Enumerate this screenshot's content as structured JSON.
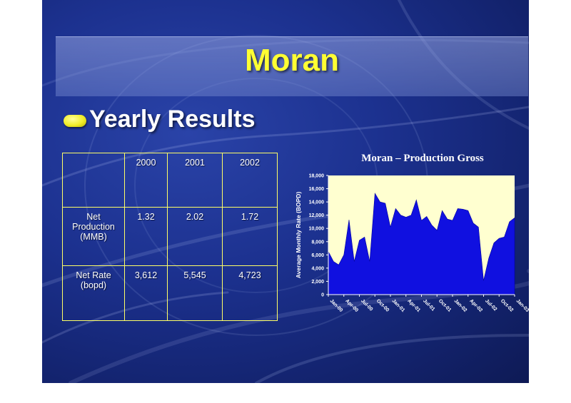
{
  "slide": {
    "title": "Moran",
    "subheading": "Yearly Results"
  },
  "table": {
    "header": [
      "",
      "2000",
      "2001",
      "2002"
    ],
    "rows": [
      {
        "label": "Net Production (MMB)",
        "values": [
          "1.32",
          "2.02",
          "1.72"
        ]
      },
      {
        "label": "Net Rate (bopd)",
        "values": [
          "3,612",
          "5,545",
          "4,723"
        ]
      }
    ]
  },
  "chart_data": {
    "type": "area",
    "title": "Moran – Production Gross",
    "xlabel": "",
    "ylabel": "Average Monthly Rate (BOPD)",
    "ylim": [
      0,
      18000
    ],
    "yticks": [
      0,
      2000,
      4000,
      6000,
      8000,
      10000,
      12000,
      14000,
      16000,
      18000
    ],
    "ytick_labels": [
      "0",
      "2,000",
      "4,000",
      "6,000",
      "8,000",
      "10,000",
      "12,000",
      "14,000",
      "16,000",
      "18,000"
    ],
    "x_tick_labels": [
      "Jan-00",
      "Apr-00",
      "Jul-00",
      "Oct-00",
      "Jan-01",
      "Apr-01",
      "Jul-01",
      "Oct-01",
      "Jan-02",
      "Apr-02",
      "Jul-02",
      "Oct-02",
      "Jan-03"
    ],
    "x": [
      "Jan-00",
      "Feb-00",
      "Mar-00",
      "Apr-00",
      "May-00",
      "Jun-00",
      "Jul-00",
      "Aug-00",
      "Sep-00",
      "Oct-00",
      "Nov-00",
      "Dec-00",
      "Jan-01",
      "Feb-01",
      "Mar-01",
      "Apr-01",
      "May-01",
      "Jun-01",
      "Jul-01",
      "Aug-01",
      "Sep-01",
      "Oct-01",
      "Nov-01",
      "Dec-01",
      "Jan-02",
      "Feb-02",
      "Mar-02",
      "Apr-02",
      "May-02",
      "Jun-02",
      "Jul-02",
      "Aug-02",
      "Sep-02",
      "Oct-02",
      "Nov-02",
      "Dec-02",
      "Jan-03"
    ],
    "values": [
      6500,
      5000,
      4500,
      6000,
      11300,
      5000,
      8200,
      8700,
      5000,
      15300,
      14000,
      13800,
      10200,
      13000,
      12000,
      11700,
      12000,
      14300,
      11200,
      11800,
      10500,
      9700,
      12700,
      11400,
      11200,
      13000,
      12900,
      12700,
      10800,
      10200,
      2100,
      5500,
      7800,
      8500,
      8700,
      11000,
      11600
    ],
    "series_color": "#1010e0",
    "plot_background": "#ffffd0",
    "grid": false,
    "legend": "none"
  }
}
